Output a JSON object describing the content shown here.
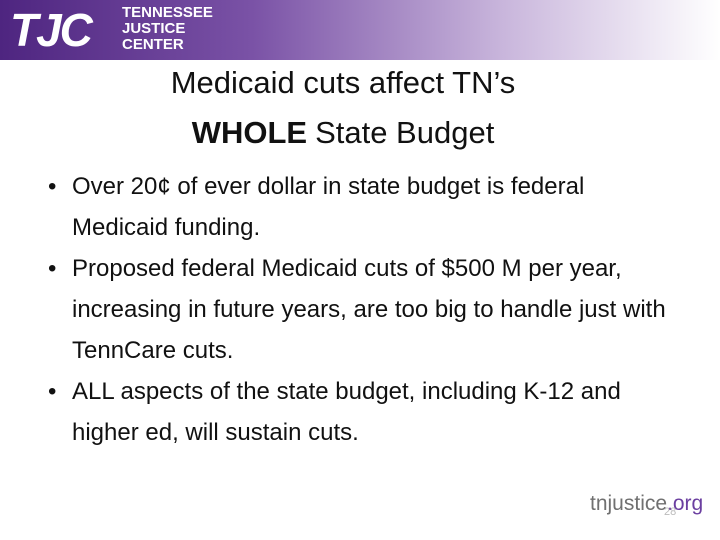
{
  "header": {
    "logo": "TJC",
    "org_name": [
      "TENNESSEE",
      "JUSTICE",
      "CENTER"
    ]
  },
  "title": {
    "line1": "Medicaid cuts affect TN’s",
    "line2_bold": "WHOLE",
    "line2_rest": "State Budget"
  },
  "bullets": [
    "Over 20¢ of ever dollar in state budget is federal Medicaid funding.",
    "Proposed federal Medicaid cuts of $500 M per year, increasing in future years, are too big to handle just with TennCare cuts.",
    "ALL aspects of the state budget, including K-12 and higher ed, will sustain cuts."
  ],
  "footer": {
    "site_name": "tnjustice",
    "site_tld": ".org",
    "page_number": "28"
  }
}
